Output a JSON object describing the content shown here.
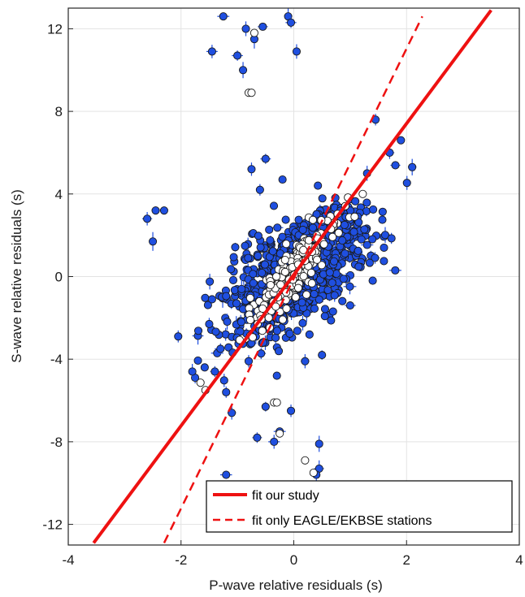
{
  "chart_data": {
    "type": "scatter",
    "title": "",
    "xlabel": "P-wave relative residuals (s)",
    "ylabel": "S-wave relative residuals (s)",
    "xlim": [
      -4,
      4
    ],
    "ylim": [
      -13,
      13
    ],
    "xticks": [
      -4,
      -2,
      0,
      2,
      4
    ],
    "yticks": [
      -12,
      -8,
      -4,
      0,
      4,
      8,
      12
    ],
    "xtick_labels": [
      "-4",
      "-2",
      "0",
      "2",
      "4"
    ],
    "ytick_labels": [
      "-12",
      "-8",
      "-4",
      "0",
      "4",
      "8",
      "12"
    ],
    "grid": true,
    "legend_position": "bottom-right",
    "colors": {
      "all_stations": "#1f4fe0",
      "eagle_ekbse": "#ffffff",
      "fit": "#ee1111"
    },
    "series": [
      {
        "kind": "points",
        "marker_fill": "#1f4fe0",
        "outliers": [
          {
            "x": -1.25,
            "y": 12.6
          },
          {
            "x": -0.85,
            "y": 12.0
          },
          {
            "x": -0.55,
            "y": 12.1
          },
          {
            "x": -0.7,
            "y": 11.5
          },
          {
            "x": -0.1,
            "y": 12.6
          },
          {
            "x": -0.05,
            "y": 12.3
          },
          {
            "x": -1.0,
            "y": 10.7
          },
          {
            "x": -1.45,
            "y": 10.9
          },
          {
            "x": 0.05,
            "y": 10.9
          },
          {
            "x": -0.9,
            "y": 10.0
          },
          {
            "x": -2.6,
            "y": 2.8
          },
          {
            "x": -2.45,
            "y": 3.2
          },
          {
            "x": -2.3,
            "y": 3.2
          },
          {
            "x": -2.5,
            "y": 1.7
          },
          {
            "x": -2.05,
            "y": -2.9
          },
          {
            "x": -1.4,
            "y": -4.6
          },
          {
            "x": -1.75,
            "y": -4.9
          },
          {
            "x": -1.8,
            "y": -4.6
          },
          {
            "x": -1.2,
            "y": -5.6
          },
          {
            "x": -1.1,
            "y": -6.6
          },
          {
            "x": -0.65,
            "y": -7.8
          },
          {
            "x": -0.35,
            "y": -8.0
          },
          {
            "x": -0.25,
            "y": -7.5
          },
          {
            "x": -0.5,
            "y": -6.3
          },
          {
            "x": -0.05,
            "y": -6.5
          },
          {
            "x": 0.45,
            "y": -8.1
          },
          {
            "x": 0.45,
            "y": -9.3
          },
          {
            "x": 0.4,
            "y": -9.6
          },
          {
            "x": -1.2,
            "y": -9.6
          },
          {
            "x": 1.45,
            "y": 7.6
          },
          {
            "x": 1.7,
            "y": 6.0
          },
          {
            "x": 1.9,
            "y": 6.6
          },
          {
            "x": 2.1,
            "y": 5.3
          },
          {
            "x": -0.2,
            "y": 4.7
          },
          {
            "x": -0.5,
            "y": 5.7
          },
          {
            "x": -0.75,
            "y": 5.2
          },
          {
            "x": -0.6,
            "y": 4.2
          },
          {
            "x": 1.3,
            "y": 5.0
          },
          {
            "x": 0.9,
            "y": 2.5
          },
          {
            "x": 1.2,
            "y": 1.8
          },
          {
            "x": 1.6,
            "y": 1.4
          },
          {
            "x": 1.8,
            "y": 0.3
          },
          {
            "x": 1.4,
            "y": -0.2
          },
          {
            "x": 1.0,
            "y": -1.4
          },
          {
            "x": -1.45,
            "y": -1.1
          },
          {
            "x": -1.5,
            "y": -2.3
          },
          {
            "x": -1.3,
            "y": -3.5
          },
          {
            "x": -0.8,
            "y": -4.1
          },
          {
            "x": -0.3,
            "y": -4.8
          },
          {
            "x": 0.2,
            "y": -4.1
          },
          {
            "x": 0.5,
            "y": -3.8
          }
        ],
        "cloud": {
          "center_x": 0.05,
          "center_y": 0.2,
          "sd_x": 0.6,
          "sd_y": 1.6,
          "correlation": 0.6,
          "count": 900
        }
      },
      {
        "kind": "points",
        "marker_fill": "#ffffff",
        "outliers": [
          {
            "x": -0.7,
            "y": 11.8
          },
          {
            "x": -0.8,
            "y": 8.9
          },
          {
            "x": -0.75,
            "y": 8.9
          },
          {
            "x": -0.35,
            "y": -6.1
          },
          {
            "x": -0.3,
            "y": -6.1
          },
          {
            "x": -0.25,
            "y": -7.6
          },
          {
            "x": 0.2,
            "y": -8.9
          },
          {
            "x": 0.35,
            "y": -9.5
          }
        ],
        "cloud": {
          "center_x": 0.0,
          "center_y": 0.2,
          "sd_x": 0.4,
          "sd_y": 1.3,
          "correlation": 0.9,
          "count": 220
        }
      }
    ],
    "lines": [
      {
        "name": "fit our study",
        "style": "solid",
        "x": [
          -3.55,
          3.5
        ],
        "y": [
          -12.9,
          12.9
        ]
      },
      {
        "name": "fit only EAGLE/EKBSE stations",
        "style": "dashed",
        "x": [
          -2.3,
          2.28
        ],
        "y": [
          -12.9,
          12.6
        ]
      }
    ]
  }
}
